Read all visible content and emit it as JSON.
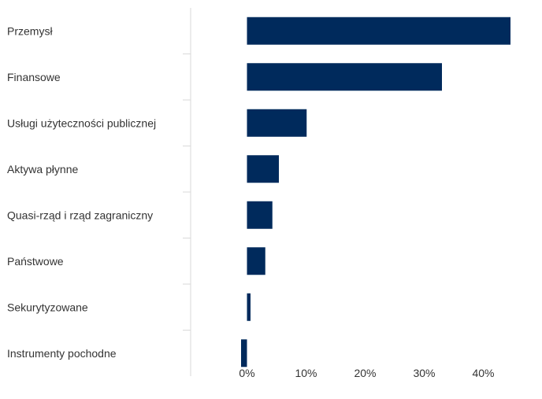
{
  "chart_data": {
    "type": "bar",
    "orientation": "horizontal",
    "categories": [
      "Przemysł",
      "Finansowe",
      "Usługi użyteczności publicznej",
      "Aktywa płynne",
      "Quasi-rząd i rząd zagraniczny",
      "Państwowe",
      "Sekurytyzowane",
      "Instrumenty pochodne"
    ],
    "values": [
      44.6,
      33.0,
      10.1,
      5.4,
      4.3,
      3.1,
      0.6,
      -1.0
    ],
    "xticks": [
      0,
      10,
      20,
      30,
      40
    ],
    "xtick_labels": [
      "0%",
      "10%",
      "20%",
      "30%",
      "40%"
    ],
    "xlim": [
      -11,
      49
    ],
    "grid": false,
    "legend": "none",
    "bar_color": "#002a5c",
    "axis_color": "#d9d9d9"
  }
}
